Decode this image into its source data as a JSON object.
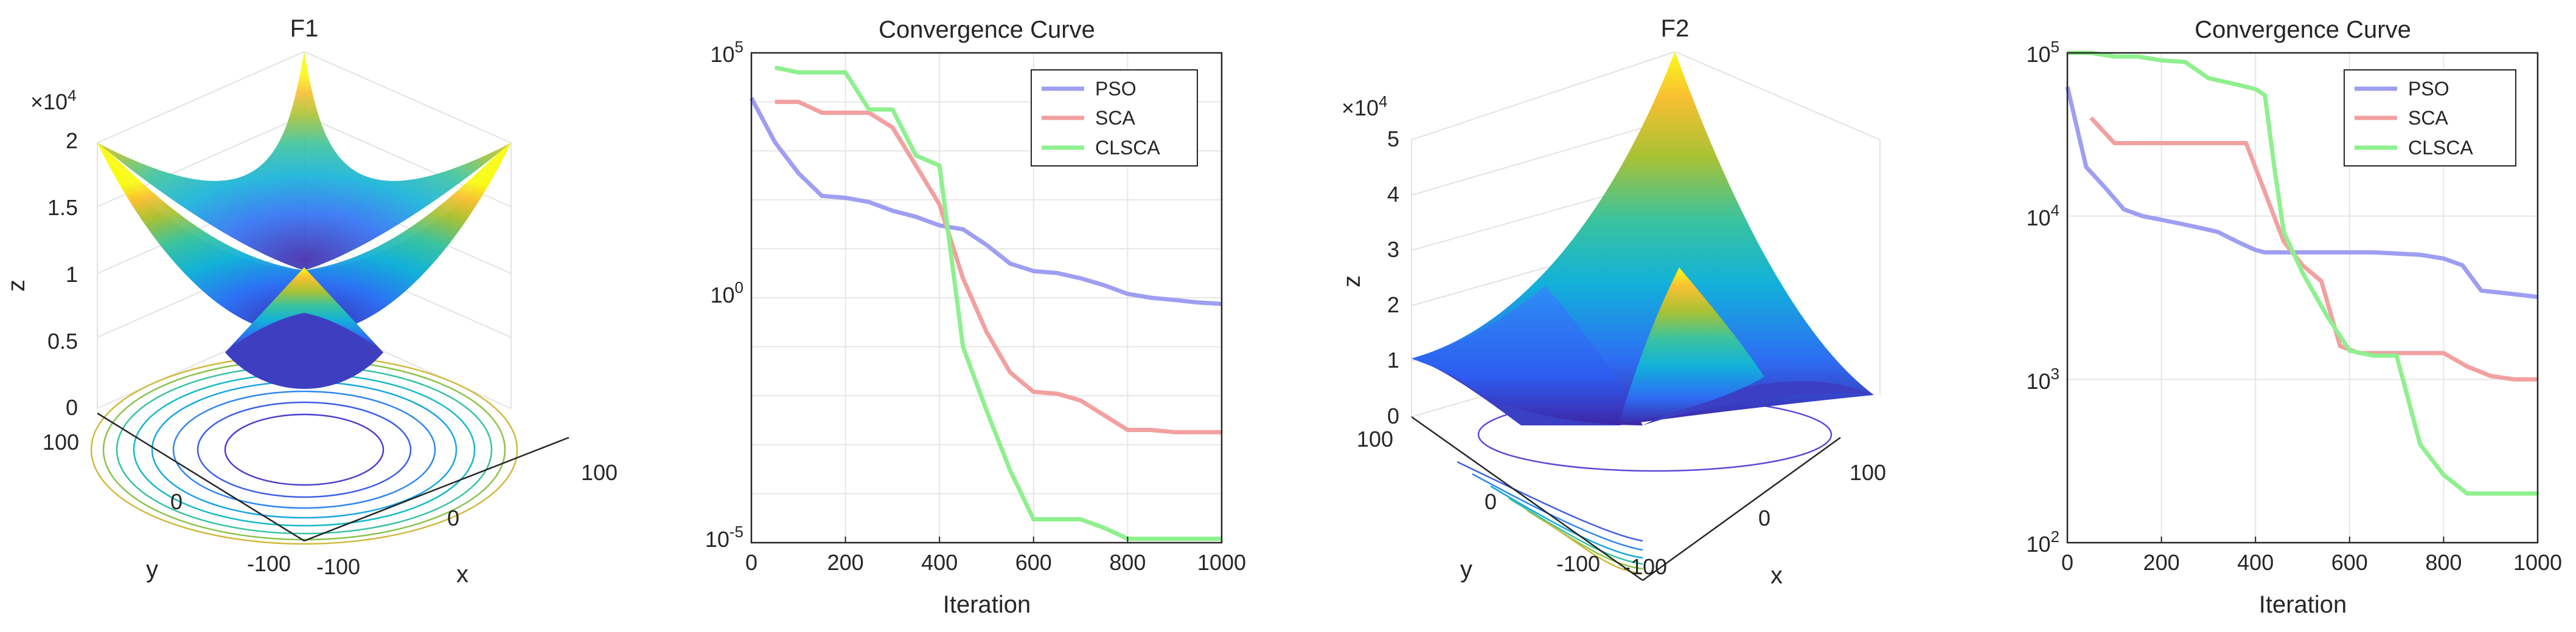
{
  "chart_data": [
    {
      "type": "surface3d",
      "title": "F1",
      "xlabel": "x",
      "ylabel": "y",
      "zlabel": "z",
      "x_ticks": [
        "-100",
        "0",
        "100"
      ],
      "y_ticks": [
        "-100",
        "0",
        "100"
      ],
      "z_ticks": [
        "0",
        "0.5",
        "1",
        "1.5",
        "2"
      ],
      "z_multiplier": "×10^4",
      "xlim": [
        -100,
        100
      ],
      "ylim": [
        -100,
        100
      ],
      "zlim": [
        0,
        20000
      ],
      "function": "z = x^2 + y^2",
      "contour_projection": true,
      "colormap": [
        "#3e26a8",
        "#2d6ff4",
        "#12b1d9",
        "#3ac39e",
        "#a9c234",
        "#f9c032",
        "#f9fb15"
      ]
    },
    {
      "type": "line",
      "title": "Convergence Curve",
      "xlabel": "Iteration",
      "ylabel": "",
      "xlim": [
        0,
        1000
      ],
      "y_scale": "log",
      "y_ticks": [
        {
          "value": 1e-05,
          "label": "10^-5"
        },
        {
          "value": 1,
          "label": "10^0"
        },
        {
          "value": 100000,
          "label": "10^5"
        }
      ],
      "x_ticks": [
        "0",
        "200",
        "400",
        "600",
        "800",
        "1000"
      ],
      "legend_position": "top-right",
      "grid": true,
      "series": [
        {
          "name": "PSO",
          "color": "#9e9ef2",
          "x": [
            0,
            50,
            100,
            150,
            200,
            250,
            300,
            350,
            400,
            450,
            500,
            550,
            600,
            650,
            700,
            750,
            800,
            850,
            900,
            950,
            1000
          ],
          "y": [
            12000,
            1500,
            350,
            120,
            110,
            90,
            60,
            45,
            30,
            25,
            12,
            5,
            3.5,
            3.2,
            2.5,
            1.8,
            1.2,
            1.0,
            0.9,
            0.8,
            0.75
          ]
        },
        {
          "name": "SCA",
          "color": "#f2a0a0",
          "x": [
            50,
            100,
            150,
            200,
            250,
            300,
            350,
            400,
            450,
            500,
            550,
            600,
            650,
            700,
            750,
            800,
            850,
            900,
            950,
            1000
          ],
          "y": [
            10000,
            10000,
            6000,
            6000,
            6000,
            3000,
            500,
            80,
            2.5,
            0.2,
            0.03,
            0.012,
            0.011,
            0.008,
            0.004,
            0.002,
            0.002,
            0.0018,
            0.0018,
            0.0018
          ]
        },
        {
          "name": "CLSCA",
          "color": "#8ef08e",
          "x": [
            50,
            100,
            150,
            200,
            250,
            300,
            350,
            400,
            450,
            500,
            550,
            600,
            650,
            700,
            750,
            800,
            850,
            900,
            950,
            1000
          ],
          "y": [
            50000,
            40000,
            40000,
            40000,
            7000,
            7000,
            800,
            500,
            0.1,
            0.005,
            0.0003,
            3e-05,
            3e-05,
            3e-05,
            2e-05,
            1.2e-05,
            1.2e-05,
            1.2e-05,
            1.2e-05,
            1.2e-05
          ]
        }
      ]
    },
    {
      "type": "surface3d",
      "title": "F2",
      "xlabel": "x",
      "ylabel": "y",
      "zlabel": "z",
      "x_ticks": [
        "-100",
        "0",
        "100"
      ],
      "y_ticks": [
        "-100",
        "0",
        "100"
      ],
      "z_ticks": [
        "0",
        "1",
        "2",
        "3",
        "4",
        "5"
      ],
      "z_multiplier": "×10^4",
      "xlim": [
        -100,
        100
      ],
      "ylim": [
        -100,
        100
      ],
      "zlim": [
        0,
        50000
      ],
      "contour_projection": true,
      "colormap": [
        "#3e26a8",
        "#2d6ff4",
        "#12b1d9",
        "#3ac39e",
        "#a9c234",
        "#f9c032",
        "#f9fb15"
      ]
    },
    {
      "type": "line",
      "title": "Convergence Curve",
      "xlabel": "Iteration",
      "ylabel": "",
      "xlim": [
        0,
        1000
      ],
      "y_scale": "log",
      "y_ticks": [
        {
          "value": 100,
          "label": "10^2"
        },
        {
          "value": 1000,
          "label": "10^3"
        },
        {
          "value": 10000,
          "label": "10^4"
        },
        {
          "value": 100000,
          "label": "10^5"
        }
      ],
      "x_ticks": [
        "0",
        "200",
        "400",
        "600",
        "800",
        "1000"
      ],
      "legend_position": "top-right",
      "grid": true,
      "series": [
        {
          "name": "PSO",
          "color": "#9e9ef2",
          "x": [
            0,
            40,
            80,
            120,
            160,
            200,
            240,
            280,
            320,
            360,
            400,
            420,
            450,
            500,
            550,
            600,
            650,
            700,
            750,
            800,
            840,
            880,
            920,
            960,
            1000
          ],
          "y": [
            62000,
            20000,
            15000,
            11000,
            10000,
            9500,
            9000,
            8500,
            8000,
            7000,
            6200,
            6000,
            6000,
            6000,
            6000,
            6000,
            6000,
            5900,
            5800,
            5500,
            5000,
            3500,
            3400,
            3300,
            3200
          ]
        },
        {
          "name": "SCA",
          "color": "#f2a0a0",
          "x": [
            50,
            100,
            150,
            200,
            250,
            300,
            350,
            380,
            420,
            460,
            500,
            540,
            580,
            620,
            660,
            700,
            750,
            800,
            850,
            900,
            950,
            1000
          ],
          "y": [
            40000,
            28000,
            28000,
            28000,
            28000,
            28000,
            28000,
            28000,
            14000,
            7000,
            5000,
            4000,
            1600,
            1450,
            1450,
            1450,
            1450,
            1450,
            1200,
            1050,
            1000,
            1000
          ]
        },
        {
          "name": "CLSCA",
          "color": "#8ef08e",
          "x": [
            0,
            50,
            100,
            150,
            200,
            250,
            300,
            350,
            400,
            420,
            440,
            460,
            500,
            550,
            600,
            650,
            700,
            750,
            800,
            850,
            900,
            950,
            1000
          ],
          "y": [
            100000,
            100000,
            95000,
            95000,
            90000,
            88000,
            70000,
            65000,
            60000,
            55000,
            20000,
            8000,
            4500,
            2500,
            1500,
            1400,
            1400,
            400,
            260,
            200,
            200,
            200,
            200
          ]
        }
      ]
    }
  ]
}
